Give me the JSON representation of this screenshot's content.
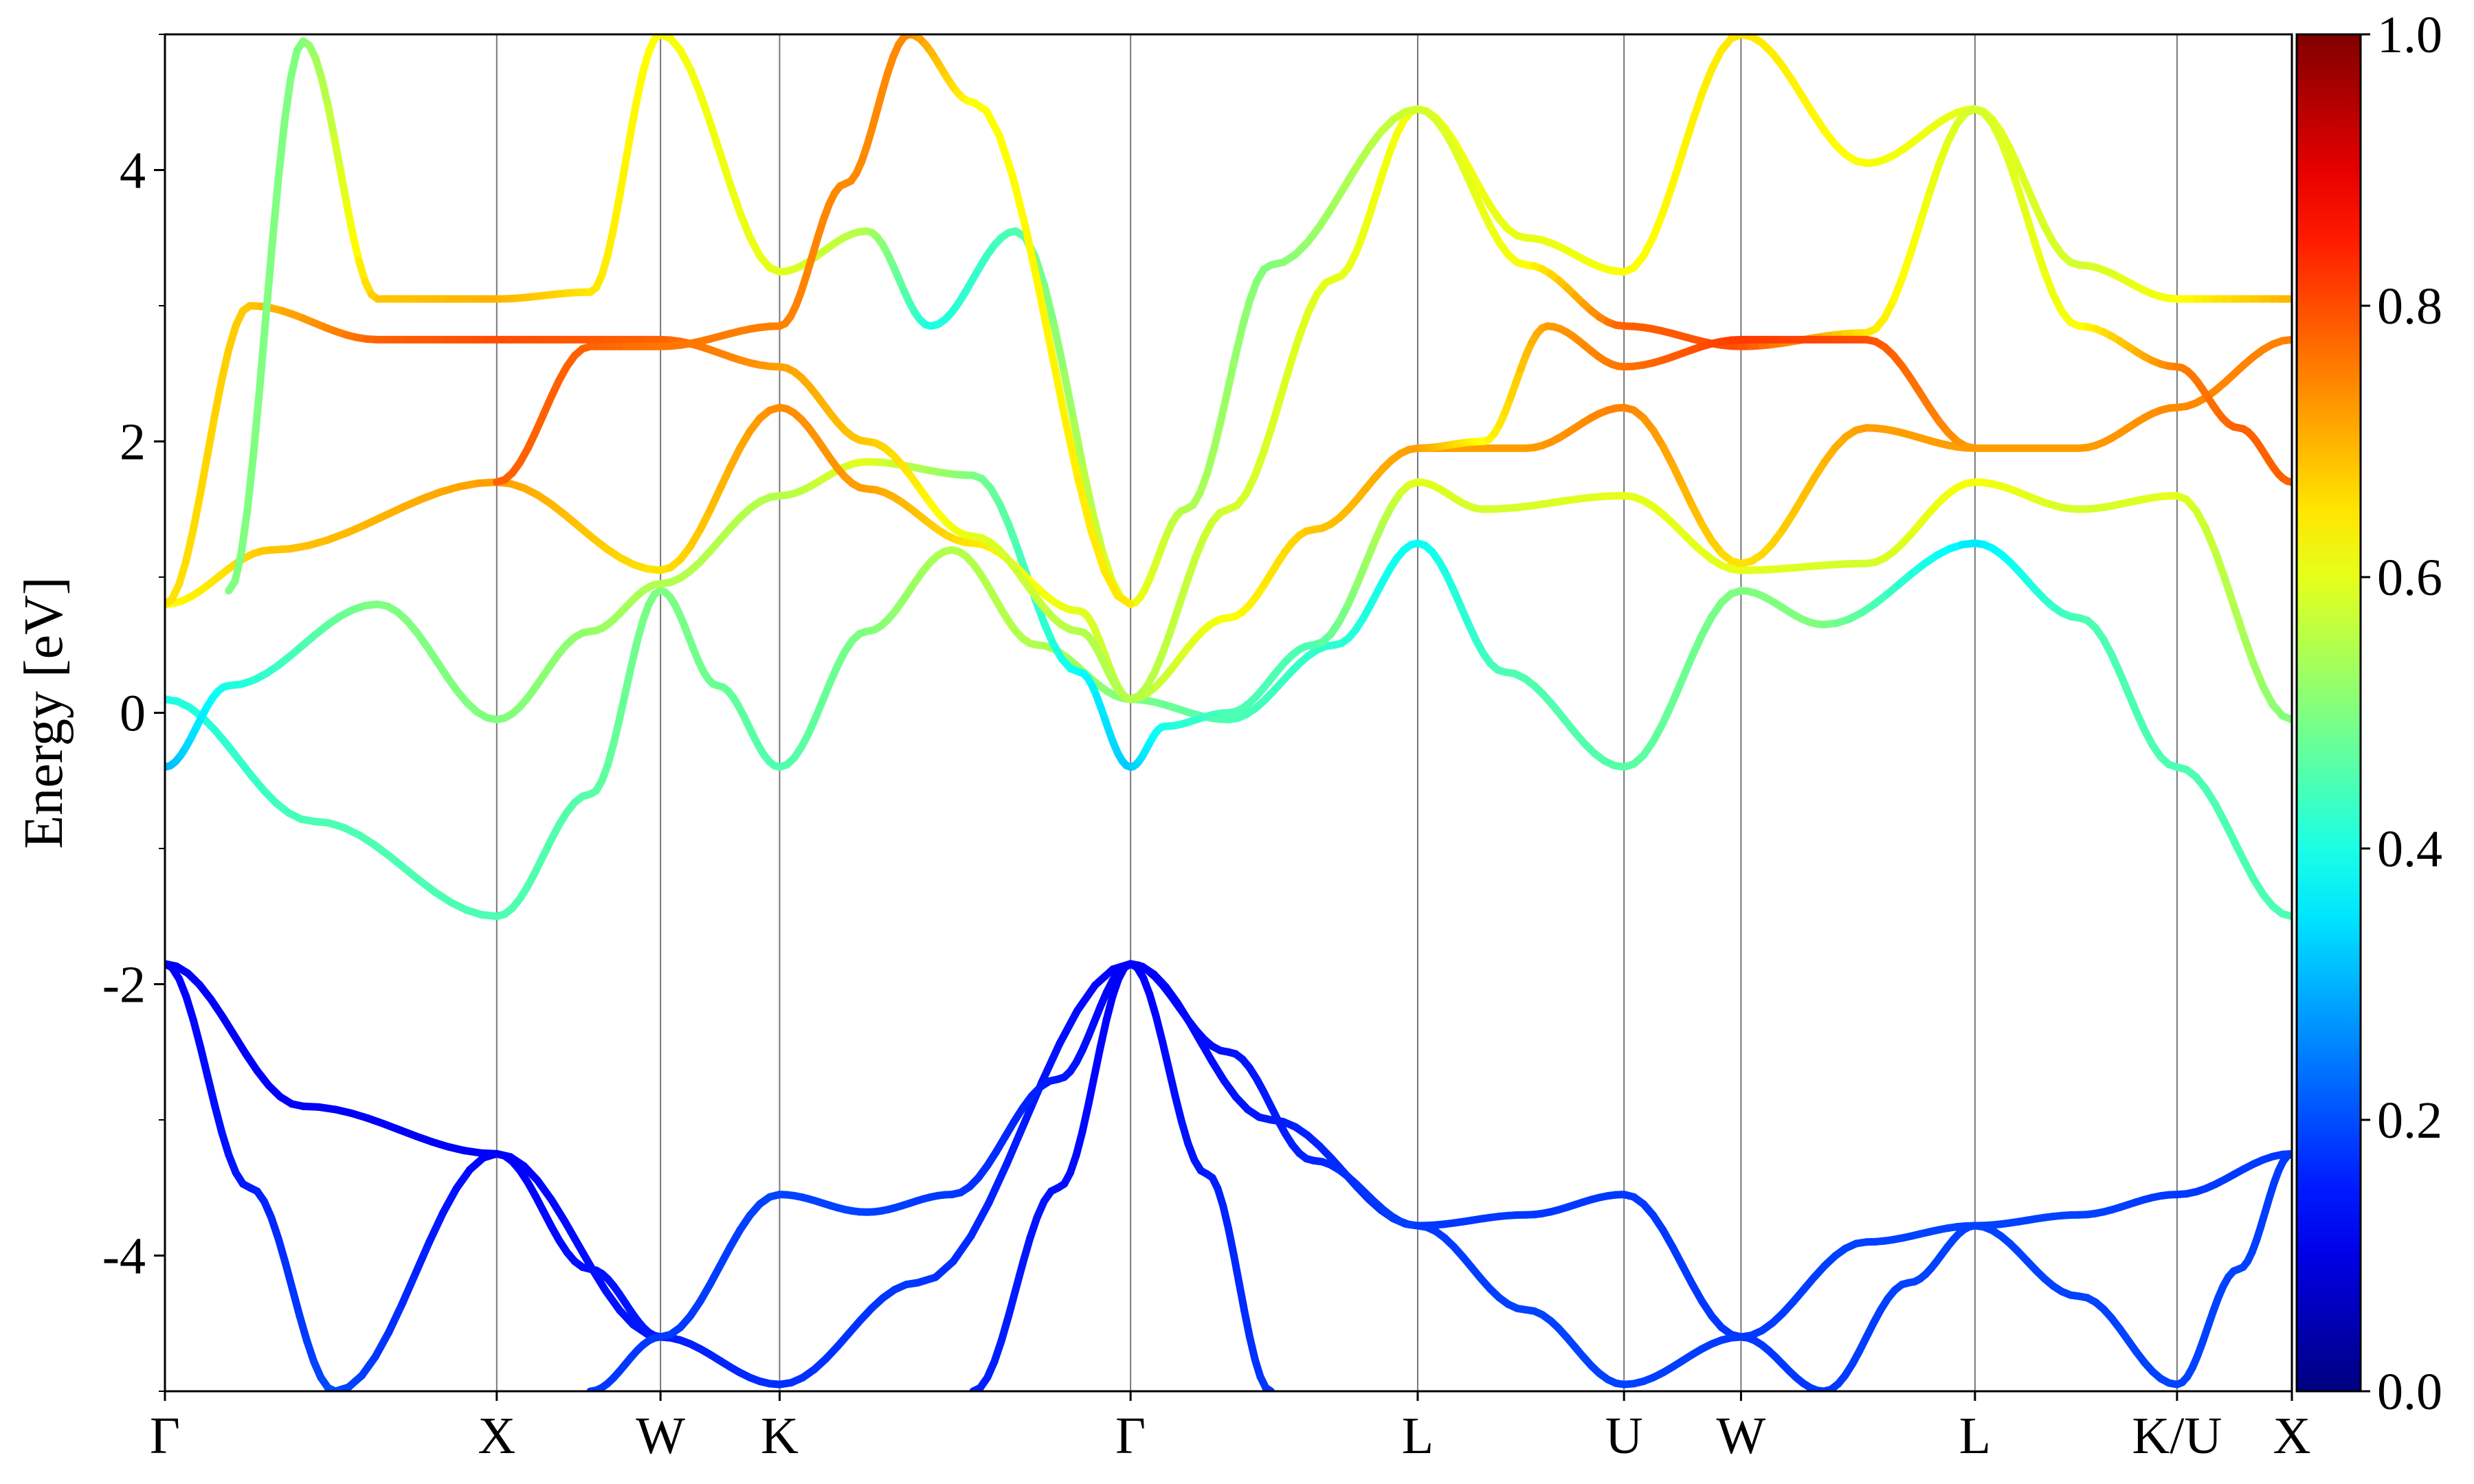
{
  "chart_data": {
    "type": "line",
    "title": "",
    "ylabel": "Energy [eV]",
    "xlabel": "",
    "ylim": [
      -5,
      5
    ],
    "yticks": [
      -4,
      -2,
      0,
      2,
      4
    ],
    "yminor": [
      -5,
      -3,
      -1,
      1,
      3,
      5
    ],
    "kpoint_labels": [
      "Γ",
      "X",
      "W",
      "K",
      "Γ",
      "L",
      "U",
      "W",
      "L",
      "K/U",
      "X"
    ],
    "kpoint_positions": [
      0.0,
      0.156,
      0.233,
      0.289,
      0.454,
      0.589,
      0.686,
      0.741,
      0.851,
      0.946,
      1.0
    ],
    "colorbar": {
      "label": "",
      "range": [
        0.0,
        1.0
      ],
      "ticks": [
        "0.0",
        "0.2",
        "0.4",
        "0.6",
        "0.8",
        "1.0"
      ],
      "colormap": "jet",
      "colors": [
        "#00007f",
        "#0000ff",
        "#007fff",
        "#00ffff",
        "#7fff7f",
        "#ffff00",
        "#ff7f00",
        "#ff0000",
        "#7f0000"
      ]
    },
    "series": [
      {
        "x": [
          0,
          0.065,
          0.156,
          0.233,
          0.289,
          0.354,
          0.454,
          0.52,
          0.589,
          0.64,
          0.686,
          0.741,
          0.8,
          0.851,
          0.9,
          0.946,
          1.0
        ],
        "y": [
          -1.85,
          -2.9,
          -3.25,
          -4.6,
          -4.95,
          -4.2,
          -1.85,
          -3.0,
          -3.78,
          -3.7,
          -3.55,
          -4.6,
          -3.9,
          -3.78,
          -3.7,
          -3.55,
          -3.25
        ],
        "c": [
          0.12,
          0.12,
          0.12,
          0.15,
          0.17,
          0.18,
          0.12,
          0.15,
          0.18,
          0.18,
          0.18,
          0.18,
          0.19,
          0.19,
          0.19,
          0.18,
          0.18
        ]
      },
      {
        "x": [
          0,
          0.04,
          0.08,
          0.156,
          0.2,
          0.233,
          0.289
        ],
        "y": [
          -1.85,
          -3.5,
          -5.0,
          -3.25,
          -4.1,
          -4.6,
          -4.95
        ],
        "c": [
          0.12,
          0.15,
          0.2,
          0.12,
          0.14,
          0.15,
          0.17
        ]
      },
      {
        "x": [
          0.2,
          0.233,
          0.289,
          0.33,
          0.37,
          0.42,
          0.454,
          0.49,
          0.52
        ],
        "y": [
          -5.0,
          -4.6,
          -3.55,
          -3.68,
          -3.55,
          -2.7,
          -1.85,
          -3.4,
          -5.0
        ],
        "c": [
          0.18,
          0.18,
          0.19,
          0.19,
          0.18,
          0.15,
          0.12,
          0.15,
          0.18
        ]
      },
      {
        "x": [
          0.38,
          0.42,
          0.454,
          0.5,
          0.54,
          0.589
        ],
        "y": [
          -5.0,
          -3.5,
          -1.85,
          -2.5,
          -3.3,
          -3.78
        ],
        "c": [
          0.16,
          0.14,
          0.12,
          0.14,
          0.16,
          0.19
        ]
      },
      {
        "x": [
          0.589,
          0.64,
          0.686,
          0.741
        ],
        "y": [
          -3.78,
          -4.4,
          -4.95,
          -4.6
        ],
        "c": [
          0.18,
          0.19,
          0.19,
          0.18
        ]
      },
      {
        "x": [
          0.741,
          0.78,
          0.82,
          0.851,
          0.9,
          0.946,
          0.975,
          1.0
        ],
        "y": [
          -4.6,
          -5.0,
          -4.2,
          -3.78,
          -4.3,
          -4.95,
          -4.1,
          -3.25
        ],
        "c": [
          0.18,
          0.18,
          0.19,
          0.19,
          0.19,
          0.19,
          0.19,
          0.18
        ]
      },
      {
        "x": [
          0,
          0.07,
          0.156,
          0.2,
          0.233,
          0.26,
          0.289,
          0.33,
          0.37,
          0.41,
          0.454,
          0.5,
          0.55,
          0.589,
          0.63,
          0.686,
          0.741,
          0.78,
          0.851,
          0.9,
          0.946,
          1.0
        ],
        "y": [
          0.1,
          -0.8,
          -1.5,
          -0.6,
          0.9,
          0.2,
          -0.4,
          0.6,
          1.2,
          0.5,
          0.1,
          -0.05,
          0.5,
          1.25,
          0.3,
          -0.4,
          0.9,
          0.65,
          1.25,
          0.7,
          -0.4,
          -1.5
        ],
        "c": [
          0.4,
          0.45,
          0.45,
          0.46,
          0.5,
          0.48,
          0.45,
          0.5,
          0.55,
          0.55,
          0.5,
          0.45,
          0.42,
          0.38,
          0.45,
          0.46,
          0.5,
          0.5,
          0.35,
          0.45,
          0.45,
          0.45
        ]
      },
      {
        "x": [
          0,
          0.03,
          0.1,
          0.156,
          0.2,
          0.233,
          0.289,
          0.33,
          0.38,
          0.43,
          0.454,
          0.47,
          0.5,
          0.54,
          0.589,
          0.62,
          0.686,
          0.741,
          0.8,
          0.851,
          0.9,
          0.946,
          1.0
        ],
        "y": [
          -0.4,
          0.2,
          0.8,
          -0.05,
          0.6,
          0.95,
          1.6,
          1.85,
          1.75,
          0.3,
          -0.4,
          -0.1,
          0.0,
          0.5,
          1.7,
          1.5,
          1.6,
          1.05,
          1.1,
          1.7,
          1.5,
          1.6,
          -0.05
        ],
        "c": [
          0.3,
          0.4,
          0.5,
          0.5,
          0.52,
          0.55,
          0.55,
          0.6,
          0.5,
          0.38,
          0.32,
          0.4,
          0.45,
          0.45,
          0.6,
          0.58,
          0.6,
          0.6,
          0.58,
          0.62,
          0.58,
          0.6,
          0.5
        ]
      },
      {
        "x": [
          0,
          0.05,
          0.156,
          0.233,
          0.289,
          0.33,
          0.38,
          0.43,
          0.454,
          0.5,
          0.54,
          0.589,
          0.64,
          0.686,
          0.741,
          0.8,
          0.851,
          0.9,
          0.946,
          1.0
        ],
        "y": [
          0.8,
          1.2,
          1.7,
          1.05,
          2.25,
          1.65,
          1.25,
          0.75,
          0.1,
          0.7,
          1.35,
          1.95,
          1.95,
          2.25,
          1.1,
          2.1,
          1.95,
          1.95,
          2.25,
          2.75
        ],
        "c": [
          0.62,
          0.68,
          0.72,
          0.65,
          0.74,
          0.72,
          0.65,
          0.6,
          0.55,
          0.62,
          0.68,
          0.72,
          0.72,
          0.75,
          0.65,
          0.72,
          0.72,
          0.72,
          0.74,
          0.75
        ]
      },
      {
        "x": [
          0,
          0.04,
          0.1,
          0.156,
          0.233,
          0.289,
          0.33,
          0.38,
          0.43,
          0.454,
          0.5,
          0.55,
          0.589,
          0.64,
          0.686,
          0.741,
          0.8,
          0.851,
          0.9,
          0.946,
          1.0
        ],
        "y": [
          0.8,
          3.0,
          2.75,
          2.75,
          2.75,
          2.55,
          2.0,
          1.3,
          0.6,
          0.1,
          1.5,
          3.2,
          4.45,
          3.5,
          3.25,
          5.0,
          4.05,
          4.45,
          3.3,
          3.05,
          3.05
        ],
        "c": [
          0.65,
          0.68,
          0.78,
          0.8,
          0.78,
          0.72,
          0.68,
          0.6,
          0.55,
          0.55,
          0.58,
          0.6,
          0.62,
          0.6,
          0.62,
          0.65,
          0.62,
          0.6,
          0.58,
          0.62,
          0.7
        ]
      },
      {
        "x": [
          0.03,
          0.065,
          0.1,
          0.156,
          0.2,
          0.233,
          0.289,
          0.33,
          0.36,
          0.4,
          0.454,
          0.48,
          0.52,
          0.589,
          0.64,
          0.686,
          0.741,
          0.8,
          0.851,
          0.9,
          0.946,
          0.975,
          1.0
        ],
        "y": [
          0.9,
          4.95,
          3.05,
          3.05,
          3.1,
          5.0,
          3.25,
          3.55,
          2.85,
          3.55,
          0.8,
          1.5,
          3.3,
          4.45,
          3.3,
          2.85,
          2.7,
          2.8,
          4.45,
          2.85,
          2.55,
          2.1,
          1.7
        ],
        "c": [
          0.5,
          0.5,
          0.68,
          0.7,
          0.65,
          0.62,
          0.6,
          0.55,
          0.4,
          0.45,
          0.62,
          0.55,
          0.5,
          0.58,
          0.62,
          0.78,
          0.8,
          0.65,
          0.58,
          0.62,
          0.75,
          0.78,
          0.78
        ]
      },
      {
        "x": [
          0.156,
          0.2,
          0.233,
          0.289,
          0.32,
          0.35,
          0.38,
          0.454
        ],
        "y": [
          1.7,
          2.7,
          2.7,
          2.85,
          3.9,
          5.0,
          4.5,
          0.8
        ],
        "c": [
          0.78,
          0.78,
          0.76,
          0.75,
          0.74,
          0.74,
          0.62,
          0.65
        ]
      },
      {
        "x": [
          0.589,
          0.62,
          0.65,
          0.686,
          0.741,
          0.8,
          0.851
        ],
        "y": [
          1.95,
          2.0,
          2.85,
          2.55,
          2.75,
          2.75,
          1.95
        ],
        "c": [
          0.72,
          0.62,
          0.72,
          0.76,
          0.82,
          0.8,
          0.72
        ]
      }
    ]
  }
}
